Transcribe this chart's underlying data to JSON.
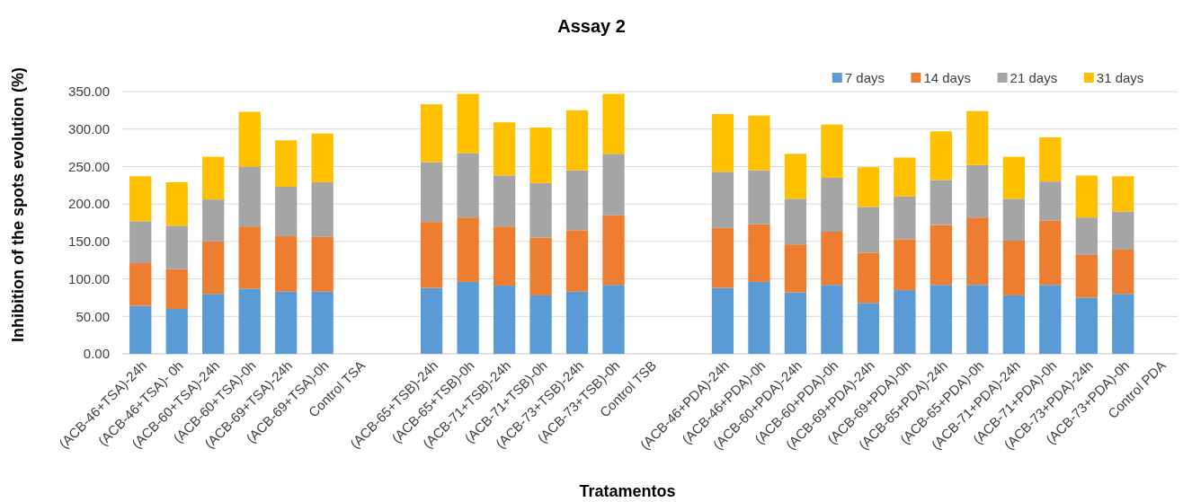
{
  "chart_data": {
    "type": "bar",
    "title": "Assay 2",
    "xlabel": "Tratamentos",
    "ylabel": "Inhibition of the spots evolution (%)",
    "stacked": true,
    "grid": "y",
    "legend": "top right",
    "categories": [
      "(ACB-46+TSA)-24h",
      "(ACB-46+TSA)- 0h",
      "(ACB-60+TSA)-24h",
      "(ACB-60+TSA)-0h",
      "(ACB-69+TSA)-24h",
      "(ACB-69+TSA)-0h",
      "Control TSA",
      null,
      "(ACB-65+TSB)-24h",
      "(ACB-65+TSB)-0h",
      "(ACB-71+TSB)-24h",
      "(ACB-71+TSB)-0h",
      "(ACB-73+TSB)-24h",
      "(ACB-73+TSB)-0h",
      "Control TSB",
      null,
      "(ACB-46+PDA)-24h",
      "(ACB-46+PDA)-0h",
      "(ACB-60+PDA)-24h",
      "(ACB-60+PDA)-0h",
      "(ACB-69+PDA)-24h",
      "(ACB-69+PDA)-0h",
      "(ACB-65+PDA)-24h",
      "(ACB-65+PDA)-0h",
      "(ACB-71+PDA)-24h",
      "(ACB-71+PDA)-0h",
      "(ACB-73+PDA)-24h",
      "(ACB-73+PDA)-0h",
      "Control PDA"
    ],
    "ylim": [
      0,
      350
    ],
    "yticks": [
      {
        "value": 0,
        "label": "0.00"
      },
      {
        "value": 50,
        "label": "50.00"
      },
      {
        "value": 100,
        "label": "100.00"
      },
      {
        "value": 150,
        "label": "150.00"
      },
      {
        "value": 200,
        "label": "200.00"
      },
      {
        "value": 250,
        "label": "250.00"
      },
      {
        "value": 300,
        "label": "300.00"
      },
      {
        "value": 350,
        "label": "350.00"
      }
    ],
    "series": [
      {
        "name": "7 days",
        "color": "#5b9bd5",
        "values": [
          64,
          60,
          80,
          87,
          83,
          83,
          null,
          null,
          88,
          96,
          91,
          78,
          83,
          92,
          null,
          null,
          88,
          96,
          82,
          92,
          68,
          85,
          92,
          92,
          78,
          92,
          75,
          80,
          null
        ]
      },
      {
        "name": "14 days",
        "color": "#ed7d31",
        "values": [
          57,
          53,
          70,
          83,
          74,
          73,
          null,
          null,
          88,
          86,
          79,
          77,
          82,
          93,
          null,
          null,
          80,
          77,
          64,
          71,
          67,
          68,
          80,
          90,
          73,
          86,
          57,
          59,
          null
        ]
      },
      {
        "name": "21 days",
        "color": "#a5a5a5",
        "values": [
          56,
          58,
          56,
          80,
          66,
          73,
          null,
          null,
          80,
          86,
          68,
          73,
          80,
          82,
          null,
          null,
          75,
          72,
          61,
          72,
          61,
          57,
          60,
          70,
          56,
          52,
          50,
          51,
          null
        ]
      },
      {
        "name": "31 days",
        "color": "#ffc000",
        "values": [
          60,
          58,
          57,
          73,
          62,
          65,
          null,
          null,
          77,
          79,
          71,
          74,
          80,
          80,
          null,
          null,
          77,
          73,
          60,
          71,
          53,
          52,
          65,
          72,
          56,
          59,
          56,
          47,
          null
        ]
      }
    ]
  }
}
